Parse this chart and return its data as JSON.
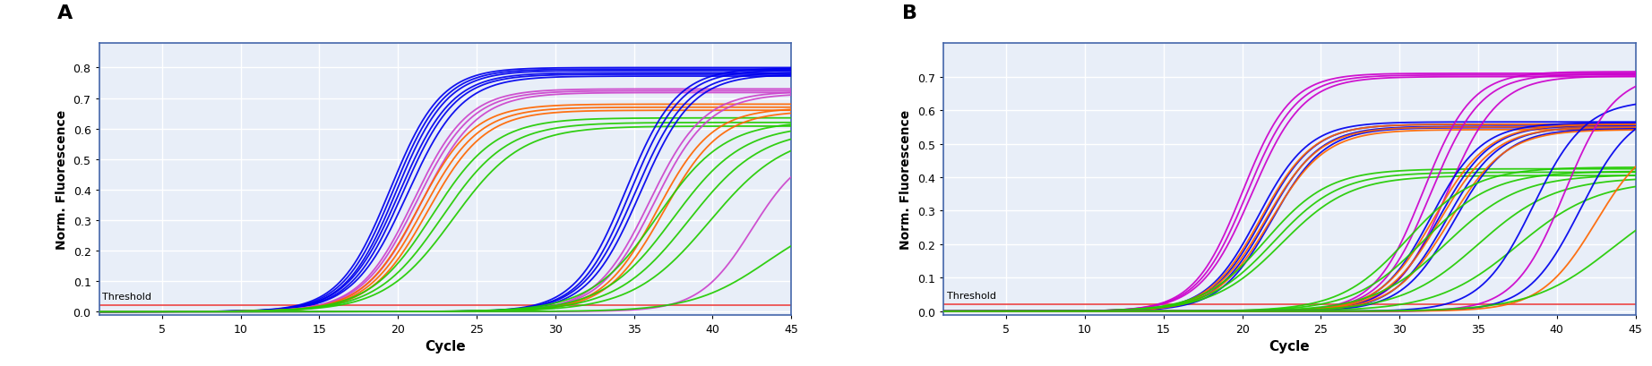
{
  "panel_A_label": "A",
  "panel_B_label": "B",
  "xlabel": "Cycle",
  "ylabel": "Norm. Fluorescence",
  "xlim": [
    1,
    45
  ],
  "ylim_A": [
    -0.01,
    0.88
  ],
  "ylim_B": [
    -0.01,
    0.8
  ],
  "xticks": [
    5,
    10,
    15,
    20,
    25,
    30,
    35,
    40,
    45
  ],
  "yticks_A": [
    0,
    0.1,
    0.2,
    0.3,
    0.4,
    0.5,
    0.6,
    0.7,
    0.8
  ],
  "yticks_B": [
    0,
    0.1,
    0.2,
    0.3,
    0.4,
    0.5,
    0.6,
    0.7
  ],
  "threshold": 0.022,
  "threshold_color": "#ee4444",
  "background_color": "#e8eef8",
  "spine_color": "#4466aa",
  "grid_color": "#ffffff",
  "panel_A_curves": [
    {
      "color": "#0000ee",
      "midpoint": 19.5,
      "rate": 0.62,
      "plateau": 0.8
    },
    {
      "color": "#0000ee",
      "midpoint": 19.7,
      "rate": 0.62,
      "plateau": 0.795
    },
    {
      "color": "#0000ee",
      "midpoint": 19.9,
      "rate": 0.62,
      "plateau": 0.79
    },
    {
      "color": "#0000ee",
      "midpoint": 20.1,
      "rate": 0.6,
      "plateau": 0.783
    },
    {
      "color": "#0000ee",
      "midpoint": 20.3,
      "rate": 0.6,
      "plateau": 0.778
    },
    {
      "color": "#0000ee",
      "midpoint": 20.6,
      "rate": 0.58,
      "plateau": 0.772
    },
    {
      "color": "#cc44cc",
      "midpoint": 21.0,
      "rate": 0.58,
      "plateau": 0.73
    },
    {
      "color": "#cc44cc",
      "midpoint": 21.2,
      "rate": 0.57,
      "plateau": 0.724
    },
    {
      "color": "#cc44cc",
      "midpoint": 21.5,
      "rate": 0.56,
      "plateau": 0.718
    },
    {
      "color": "#ff6600",
      "midpoint": 21.3,
      "rate": 0.57,
      "plateau": 0.68
    },
    {
      "color": "#ff6600",
      "midpoint": 21.6,
      "rate": 0.56,
      "plateau": 0.67
    },
    {
      "color": "#ff6600",
      "midpoint": 21.9,
      "rate": 0.55,
      "plateau": 0.66
    },
    {
      "color": "#22cc00",
      "midpoint": 22.2,
      "rate": 0.5,
      "plateau": 0.635
    },
    {
      "color": "#22cc00",
      "midpoint": 22.8,
      "rate": 0.48,
      "plateau": 0.62
    },
    {
      "color": "#22cc00",
      "midpoint": 23.5,
      "rate": 0.46,
      "plateau": 0.608
    },
    {
      "color": "#0000ee",
      "midpoint": 34.5,
      "rate": 0.62,
      "plateau": 0.798
    },
    {
      "color": "#0000ee",
      "midpoint": 34.8,
      "rate": 0.62,
      "plateau": 0.792
    },
    {
      "color": "#0000ee",
      "midpoint": 35.1,
      "rate": 0.6,
      "plateau": 0.785
    },
    {
      "color": "#0000ee",
      "midpoint": 35.4,
      "rate": 0.6,
      "plateau": 0.778
    },
    {
      "color": "#cc44cc",
      "midpoint": 36.0,
      "rate": 0.58,
      "plateau": 0.722
    },
    {
      "color": "#cc44cc",
      "midpoint": 36.3,
      "rate": 0.57,
      "plateau": 0.715
    },
    {
      "color": "#ff6600",
      "midpoint": 36.5,
      "rate": 0.57,
      "plateau": 0.668
    },
    {
      "color": "#ff6600",
      "midpoint": 36.9,
      "rate": 0.55,
      "plateau": 0.658
    },
    {
      "color": "#22cc00",
      "midpoint": 36.5,
      "rate": 0.47,
      "plateau": 0.625
    },
    {
      "color": "#22cc00",
      "midpoint": 37.5,
      "rate": 0.45,
      "plateau": 0.612
    },
    {
      "color": "#22cc00",
      "midpoint": 38.5,
      "rate": 0.43,
      "plateau": 0.6
    },
    {
      "color": "#22cc00",
      "midpoint": 39.8,
      "rate": 0.41,
      "plateau": 0.59
    },
    {
      "color": "#cc44cc",
      "midpoint": 42.5,
      "rate": 0.6,
      "plateau": 0.54
    },
    {
      "color": "#22cc00",
      "midpoint": 43.5,
      "rate": 0.42,
      "plateau": 0.33
    }
  ],
  "panel_B_curves": [
    {
      "color": "#cc00cc",
      "midpoint": 20.0,
      "rate": 0.65,
      "plateau": 0.71
    },
    {
      "color": "#cc00cc",
      "midpoint": 20.3,
      "rate": 0.63,
      "plateau": 0.705
    },
    {
      "color": "#cc00cc",
      "midpoint": 20.6,
      "rate": 0.61,
      "plateau": 0.7
    },
    {
      "color": "#0000ee",
      "midpoint": 21.0,
      "rate": 0.62,
      "plateau": 0.565
    },
    {
      "color": "#0000ee",
      "midpoint": 21.3,
      "rate": 0.61,
      "plateau": 0.558
    },
    {
      "color": "#0000ee",
      "midpoint": 21.6,
      "rate": 0.6,
      "plateau": 0.552
    },
    {
      "color": "#0000ee",
      "midpoint": 21.9,
      "rate": 0.6,
      "plateau": 0.548
    },
    {
      "color": "#ff6600",
      "midpoint": 21.2,
      "rate": 0.6,
      "plateau": 0.558
    },
    {
      "color": "#ff6600",
      "midpoint": 21.5,
      "rate": 0.58,
      "plateau": 0.55
    },
    {
      "color": "#ff6600",
      "midpoint": 21.8,
      "rate": 0.57,
      "plateau": 0.542
    },
    {
      "color": "#22cc00",
      "midpoint": 21.5,
      "rate": 0.5,
      "plateau": 0.425
    },
    {
      "color": "#22cc00",
      "midpoint": 22.0,
      "rate": 0.48,
      "plateau": 0.415
    },
    {
      "color": "#22cc00",
      "midpoint": 22.5,
      "rate": 0.46,
      "plateau": 0.405
    },
    {
      "color": "#cc00cc",
      "midpoint": 31.5,
      "rate": 0.65,
      "plateau": 0.715
    },
    {
      "color": "#cc00cc",
      "midpoint": 32.0,
      "rate": 0.63,
      "plateau": 0.708
    },
    {
      "color": "#cc00cc",
      "midpoint": 33.0,
      "rate": 0.61,
      "plateau": 0.702
    },
    {
      "color": "#0000ee",
      "midpoint": 32.0,
      "rate": 0.62,
      "plateau": 0.562
    },
    {
      "color": "#0000ee",
      "midpoint": 32.5,
      "rate": 0.61,
      "plateau": 0.556
    },
    {
      "color": "#0000ee",
      "midpoint": 33.0,
      "rate": 0.6,
      "plateau": 0.55
    },
    {
      "color": "#0000ee",
      "midpoint": 33.5,
      "rate": 0.6,
      "plateau": 0.545
    },
    {
      "color": "#ff6600",
      "midpoint": 32.2,
      "rate": 0.58,
      "plateau": 0.558
    },
    {
      "color": "#ff6600",
      "midpoint": 32.6,
      "rate": 0.57,
      "plateau": 0.55
    },
    {
      "color": "#ff6600",
      "midpoint": 33.2,
      "rate": 0.56,
      "plateau": 0.542
    },
    {
      "color": "#22cc00",
      "midpoint": 30.5,
      "rate": 0.47,
      "plateau": 0.43
    },
    {
      "color": "#22cc00",
      "midpoint": 31.5,
      "rate": 0.45,
      "plateau": 0.418
    },
    {
      "color": "#22cc00",
      "midpoint": 33.0,
      "rate": 0.43,
      "plateau": 0.408
    },
    {
      "color": "#22cc00",
      "midpoint": 35.0,
      "rate": 0.41,
      "plateau": 0.4
    },
    {
      "color": "#22cc00",
      "midpoint": 37.5,
      "rate": 0.39,
      "plateau": 0.392
    },
    {
      "color": "#0000ee",
      "midpoint": 38.5,
      "rate": 0.6,
      "plateau": 0.63
    },
    {
      "color": "#cc00cc",
      "midpoint": 40.5,
      "rate": 0.63,
      "plateau": 0.71
    },
    {
      "color": "#0000ee",
      "midpoint": 41.5,
      "rate": 0.6,
      "plateau": 0.61
    },
    {
      "color": "#ff6600",
      "midpoint": 42.5,
      "rate": 0.57,
      "plateau": 0.535
    },
    {
      "color": "#22cc00",
      "midpoint": 43.5,
      "rate": 0.39,
      "plateau": 0.375
    }
  ]
}
